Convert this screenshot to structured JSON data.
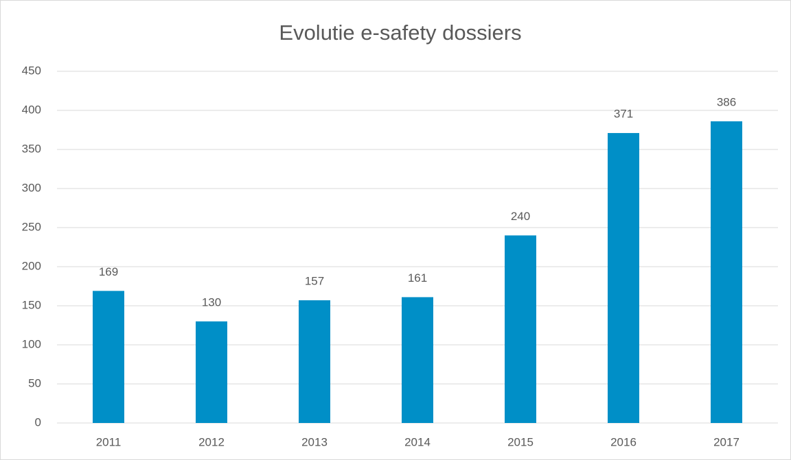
{
  "chart_data": {
    "type": "bar",
    "title": "Evolutie e-safety dossiers",
    "categories": [
      "2011",
      "2012",
      "2013",
      "2014",
      "2015",
      "2016",
      "2017"
    ],
    "values": [
      169,
      130,
      157,
      161,
      240,
      371,
      386
    ],
    "color": "#008fc7",
    "ylim": [
      0,
      450
    ],
    "yticks": [
      0,
      50,
      100,
      150,
      200,
      250,
      300,
      350,
      400,
      450
    ],
    "grid": true,
    "data_labels": true
  }
}
